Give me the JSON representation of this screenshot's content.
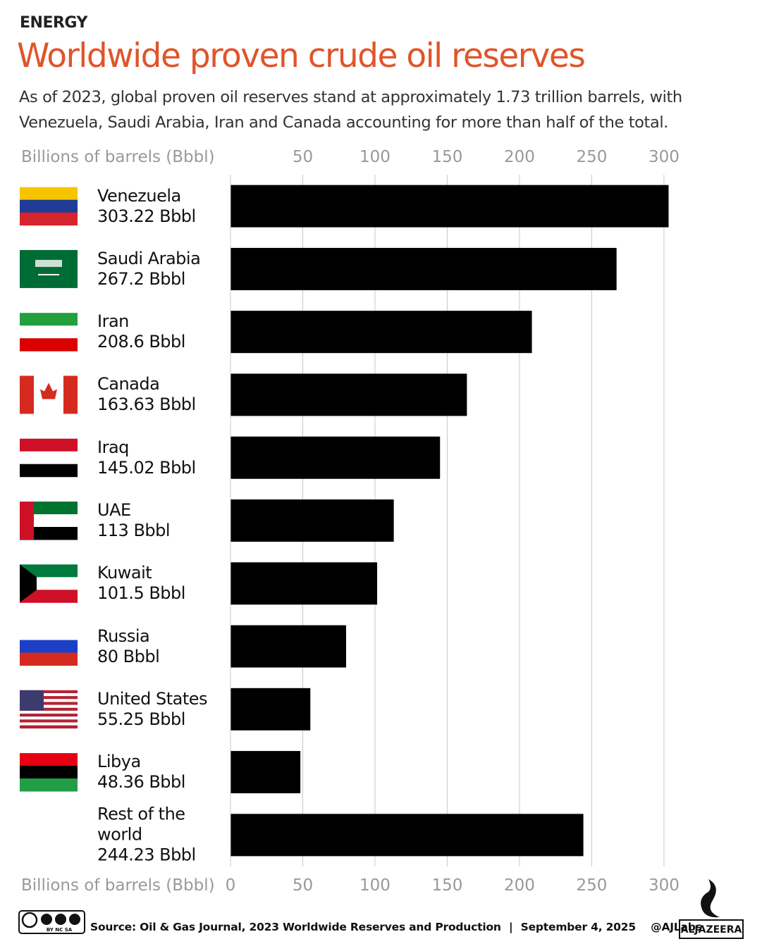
{
  "header": {
    "kicker": "ENERGY"
  },
  "chart_data": {
    "type": "bar",
    "orientation": "horizontal",
    "title": "Worldwide proven crude oil reserves",
    "subtitle": "As of 2023, global proven oil reserves stand at approximately 1.73 trillion barrels, with Venezuela, Saudi Arabia, Iran and Canada accounting for more than half of the total.",
    "x_label": "Billions of barrels (Bbbl)",
    "categories": [
      "Venezuela",
      "Saudi Arabia",
      "Iran",
      "Canada",
      "Iraq",
      "UAE",
      "Kuwait",
      "Russia",
      "United States",
      "Libya",
      "Rest of the world"
    ],
    "values": [
      303.22,
      267.2,
      208.6,
      163.63,
      145.02,
      113,
      101.5,
      80,
      55.25,
      48.36,
      244.23
    ],
    "value_labels": [
      "303.22 Bbbl",
      "267.2 Bbbl",
      "208.6 Bbbl",
      "163.63 Bbbl",
      "145.02 Bbbl",
      "113 Bbbl",
      "101.5 Bbbl",
      "80 Bbbl",
      "55.25 Bbbl",
      "48.36 Bbbl",
      "244.23 Bbbl"
    ],
    "color": "#000000",
    "xlim": [
      0,
      302
    ],
    "xticks": [
      0,
      50,
      100,
      150,
      200,
      250,
      300
    ],
    "grid": true
  },
  "footer": {
    "license": "BY NC SA",
    "source": "Source: Oil & Gas Journal, 2023 Worldwide Reserves and Production",
    "date": "September 4, 2025",
    "handle": "@AJLabs",
    "brand": "ALJAZEERA"
  }
}
